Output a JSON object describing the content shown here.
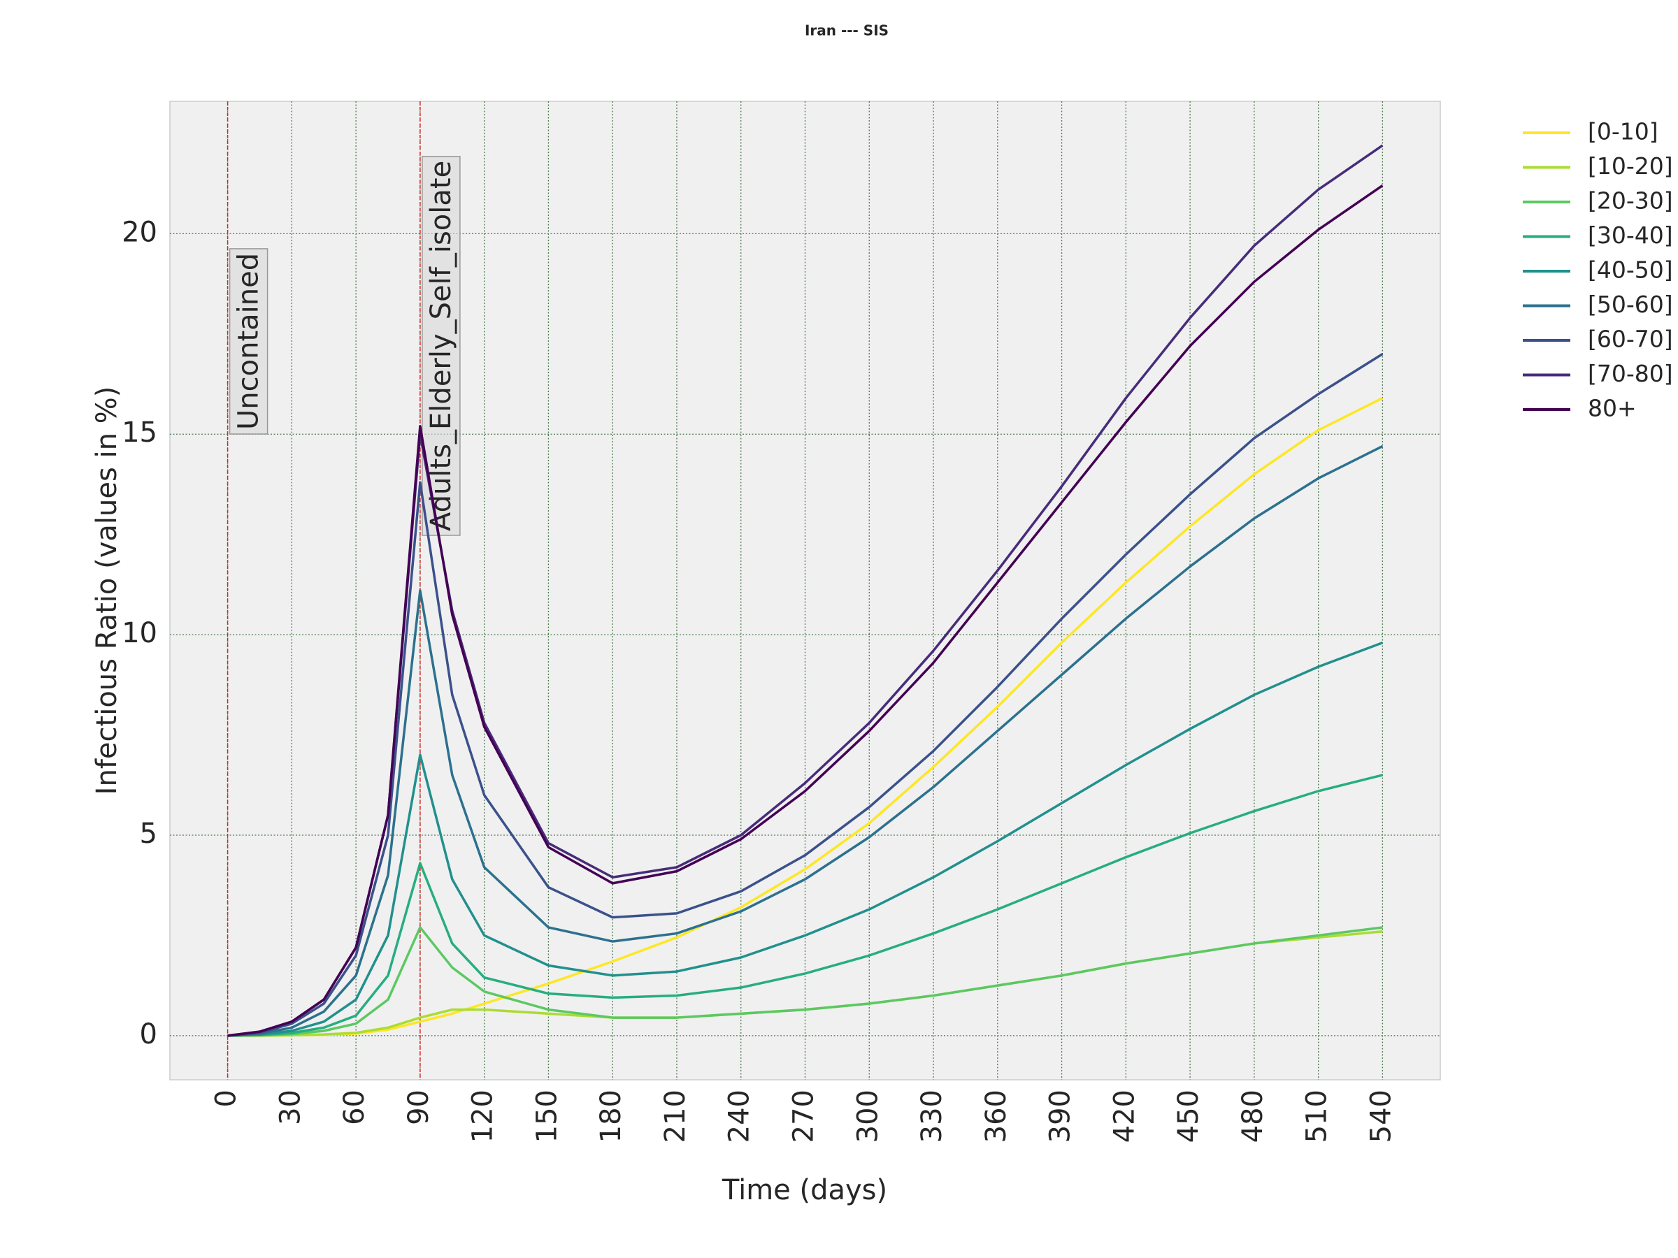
{
  "chart_data": {
    "type": "line",
    "title": "Iran --- SIS",
    "x_label": "Time (days)",
    "y_label": "Infectious Ratio (values in %)",
    "x": [
      0,
      15,
      30,
      45,
      60,
      75,
      90,
      105,
      120,
      150,
      180,
      210,
      240,
      270,
      300,
      330,
      360,
      390,
      420,
      450,
      480,
      510,
      540
    ],
    "series": [
      {
        "name": "[0-10]",
        "color": "#fde725",
        "values": [
          0,
          0,
          0.01,
          0.02,
          0.05,
          0.15,
          0.35,
          0.55,
          0.8,
          1.3,
          1.85,
          2.45,
          3.2,
          4.15,
          5.3,
          6.7,
          8.2,
          9.8,
          11.3,
          12.7,
          14.0,
          15.1,
          15.9
        ]
      },
      {
        "name": "[10-20]",
        "color": "#aadc32",
        "values": [
          0,
          0,
          0.01,
          0.03,
          0.07,
          0.2,
          0.45,
          0.65,
          0.65,
          0.55,
          0.45,
          0.45,
          0.55,
          0.65,
          0.8,
          1.0,
          1.25,
          1.5,
          1.8,
          2.05,
          2.3,
          2.45,
          2.6
        ]
      },
      {
        "name": "[20-30]",
        "color": "#5cc863",
        "values": [
          0,
          0.01,
          0.04,
          0.12,
          0.3,
          0.9,
          2.7,
          1.7,
          1.1,
          0.65,
          0.45,
          0.45,
          0.55,
          0.65,
          0.8,
          1.0,
          1.25,
          1.5,
          1.8,
          2.05,
          2.3,
          2.5,
          2.7
        ]
      },
      {
        "name": "[30-40]",
        "color": "#27ad81",
        "values": [
          0,
          0.02,
          0.07,
          0.2,
          0.5,
          1.5,
          4.3,
          2.3,
          1.45,
          1.05,
          0.95,
          1.0,
          1.2,
          1.55,
          2.0,
          2.55,
          3.15,
          3.8,
          4.45,
          5.05,
          5.6,
          6.1,
          6.5
        ]
      },
      {
        "name": "[40-50]",
        "color": "#21908d",
        "values": [
          0,
          0.03,
          0.12,
          0.35,
          0.9,
          2.5,
          7.0,
          3.9,
          2.5,
          1.75,
          1.5,
          1.6,
          1.95,
          2.5,
          3.15,
          3.95,
          4.85,
          5.8,
          6.75,
          7.65,
          8.5,
          9.2,
          9.8
        ]
      },
      {
        "name": "[50-60]",
        "color": "#2c718e",
        "values": [
          0,
          0.05,
          0.2,
          0.6,
          1.5,
          4.0,
          11.1,
          6.5,
          4.2,
          2.7,
          2.35,
          2.55,
          3.1,
          3.9,
          4.95,
          6.2,
          7.6,
          9.0,
          10.4,
          11.7,
          12.9,
          13.9,
          14.7
        ]
      },
      {
        "name": "[60-70]",
        "color": "#3b518b",
        "values": [
          0,
          0.07,
          0.3,
          0.8,
          2.0,
          5.0,
          13.8,
          8.5,
          6.0,
          3.7,
          2.95,
          3.05,
          3.6,
          4.5,
          5.7,
          7.1,
          8.7,
          10.4,
          12.0,
          13.5,
          14.9,
          16.0,
          17.0
        ]
      },
      {
        "name": "[70-80]",
        "color": "#472c7a",
        "values": [
          0,
          0.1,
          0.35,
          0.9,
          2.2,
          5.5,
          15.0,
          10.6,
          7.8,
          4.8,
          3.95,
          4.2,
          5.0,
          6.3,
          7.8,
          9.6,
          11.6,
          13.7,
          15.9,
          17.9,
          19.7,
          21.1,
          22.2
        ]
      },
      {
        "name": "80+",
        "color": "#440154",
        "values": [
          0,
          0.1,
          0.35,
          0.9,
          2.2,
          5.5,
          15.2,
          10.5,
          7.7,
          4.7,
          3.8,
          4.1,
          4.9,
          6.1,
          7.6,
          9.3,
          11.3,
          13.3,
          15.3,
          17.2,
          18.8,
          20.1,
          21.2
        ]
      }
    ],
    "annotations": [
      {
        "x": 0,
        "label": "Uncontained"
      },
      {
        "x": 90,
        "label": "Adults_Elderly_Self_isolate"
      }
    ],
    "annotation_color": "#d62728",
    "xlim": [
      -27,
      567
    ],
    "ylim": [
      -1.1,
      23.3
    ],
    "xticks": [
      0,
      30,
      60,
      90,
      120,
      150,
      180,
      210,
      240,
      270,
      300,
      330,
      360,
      390,
      420,
      450,
      480,
      510,
      540
    ],
    "yticks": [
      0,
      5,
      10,
      15,
      20
    ],
    "grid": true,
    "legend": "outside right"
  }
}
